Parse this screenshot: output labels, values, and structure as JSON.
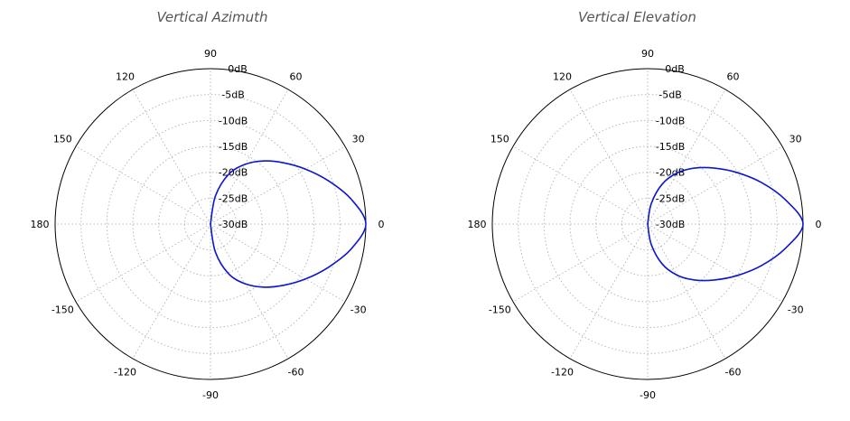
{
  "chart_data": [
    {
      "type": "polar-line",
      "title": "Vertical Azimuth",
      "angle_ticks": [
        "0",
        "30",
        "60",
        "90",
        "120",
        "150",
        "180",
        "-150",
        "-120",
        "-90",
        "-60",
        "-30"
      ],
      "radial_ticks": [
        "0dB",
        "-5dB",
        "-10dB",
        "-15dB",
        "-20dB",
        "-25dB",
        "-30dB"
      ],
      "rlim": [
        -30,
        0
      ],
      "grid": true,
      "series": [
        {
          "color": "#0d16d0",
          "angles_deg": [
            -90,
            -80,
            -70,
            -60,
            -50,
            -40,
            -30,
            -20,
            -10,
            0,
            10,
            20,
            30,
            40,
            50,
            60,
            70,
            80,
            90
          ],
          "values_db": [
            -30,
            -24.5,
            -19.8,
            -16.7,
            -14.1,
            -11.6,
            -8.8,
            -5.7,
            -2.4,
            0,
            -2.4,
            -5.7,
            -8.8,
            -11.6,
            -14.1,
            -16.7,
            -19.8,
            -24.5,
            -30
          ]
        }
      ]
    },
    {
      "type": "polar-line",
      "title": "Vertical Elevation",
      "angle_ticks": [
        "0",
        "30",
        "60",
        "90",
        "120",
        "150",
        "180",
        "-150",
        "-120",
        "-90",
        "-60",
        "-30"
      ],
      "radial_ticks": [
        "0dB",
        "-5dB",
        "-10dB",
        "-15dB",
        "-20dB",
        "-25dB",
        "-30dB"
      ],
      "rlim": [
        -30,
        0
      ],
      "grid": true,
      "series": [
        {
          "color": "#0d16d0",
          "angles_deg": [
            -90,
            -80,
            -70,
            -60,
            -50,
            -40,
            -30,
            -20,
            -10,
            0,
            10,
            20,
            30,
            40,
            50,
            60,
            70,
            80,
            90
          ],
          "values_db": [
            -30,
            -26.0,
            -21.8,
            -18.6,
            -15.9,
            -13.2,
            -10.1,
            -6.6,
            -3.0,
            0,
            -3.0,
            -6.6,
            -10.1,
            -13.2,
            -15.9,
            -18.6,
            -21.8,
            -26.0,
            -30
          ]
        }
      ]
    }
  ]
}
